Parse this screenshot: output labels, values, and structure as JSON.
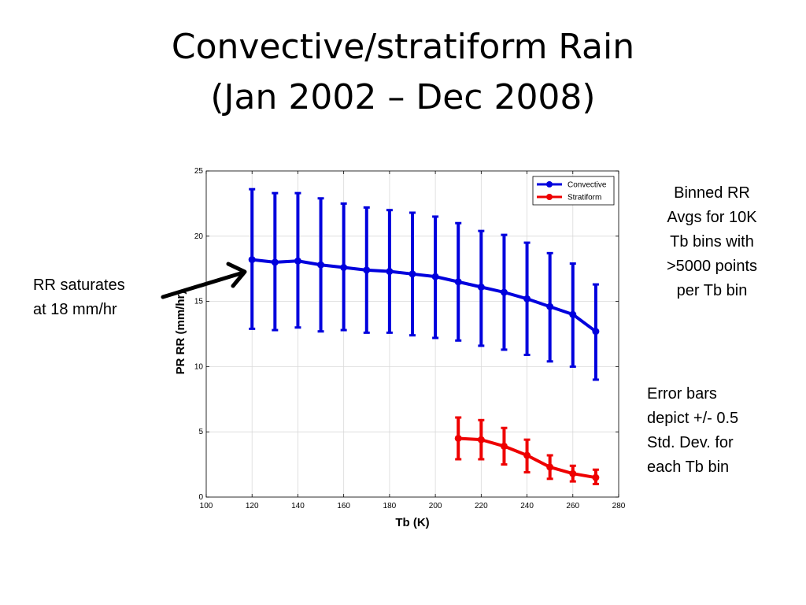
{
  "slide": {
    "title_line1": "Convective/stratiform Rain",
    "title_line2": "(Jan 2002 – Dec 2008)"
  },
  "annotations": {
    "binned_note": "Binned RR\nAvgs for 10K\nTb bins with\n>5000 points\nper Tb bin",
    "errorbar_note": "Error bars\ndepict +/- 0.5\nStd. Dev. for\neach Tb bin",
    "saturation_note": "RR saturates\nat 18 mm/hr"
  },
  "chart_data": {
    "type": "line",
    "title": "",
    "xlabel": "Tb (K)",
    "ylabel": "PR RR (mm/hr)",
    "xlim": [
      100,
      280
    ],
    "ylim": [
      0,
      25
    ],
    "xticks": [
      100,
      120,
      140,
      160,
      180,
      200,
      220,
      240,
      260,
      280
    ],
    "yticks": [
      0,
      5,
      10,
      15,
      20,
      25
    ],
    "grid": true,
    "legend_position": "top-right",
    "error_bars": "+/- 0.5 standard deviation",
    "series": [
      {
        "name": "Convective",
        "color": "#0000dd",
        "x": [
          120,
          130,
          140,
          150,
          160,
          170,
          180,
          190,
          200,
          210,
          220,
          230,
          240,
          250,
          260,
          270
        ],
        "y": [
          18.2,
          18.0,
          18.1,
          17.8,
          17.6,
          17.4,
          17.3,
          17.1,
          16.9,
          16.5,
          16.1,
          15.7,
          15.2,
          14.6,
          14.0,
          12.7
        ],
        "err_low": [
          12.9,
          12.8,
          13.0,
          12.7,
          12.8,
          12.6,
          12.6,
          12.4,
          12.2,
          12.0,
          11.6,
          11.3,
          10.9,
          10.4,
          10.0,
          9.0
        ],
        "err_high": [
          23.6,
          23.3,
          23.3,
          22.9,
          22.5,
          22.2,
          22.0,
          21.8,
          21.5,
          21.0,
          20.4,
          20.1,
          19.5,
          18.7,
          17.9,
          16.3
        ]
      },
      {
        "name": "Stratiform",
        "color": "#ee0000",
        "x": [
          210,
          220,
          230,
          240,
          250,
          260,
          270
        ],
        "y": [
          4.5,
          4.4,
          3.9,
          3.2,
          2.3,
          1.8,
          1.5
        ],
        "err_low": [
          2.9,
          2.9,
          2.5,
          1.9,
          1.4,
          1.2,
          1.0
        ],
        "err_high": [
          6.1,
          5.9,
          5.3,
          4.4,
          3.2,
          2.4,
          2.1
        ]
      }
    ]
  }
}
